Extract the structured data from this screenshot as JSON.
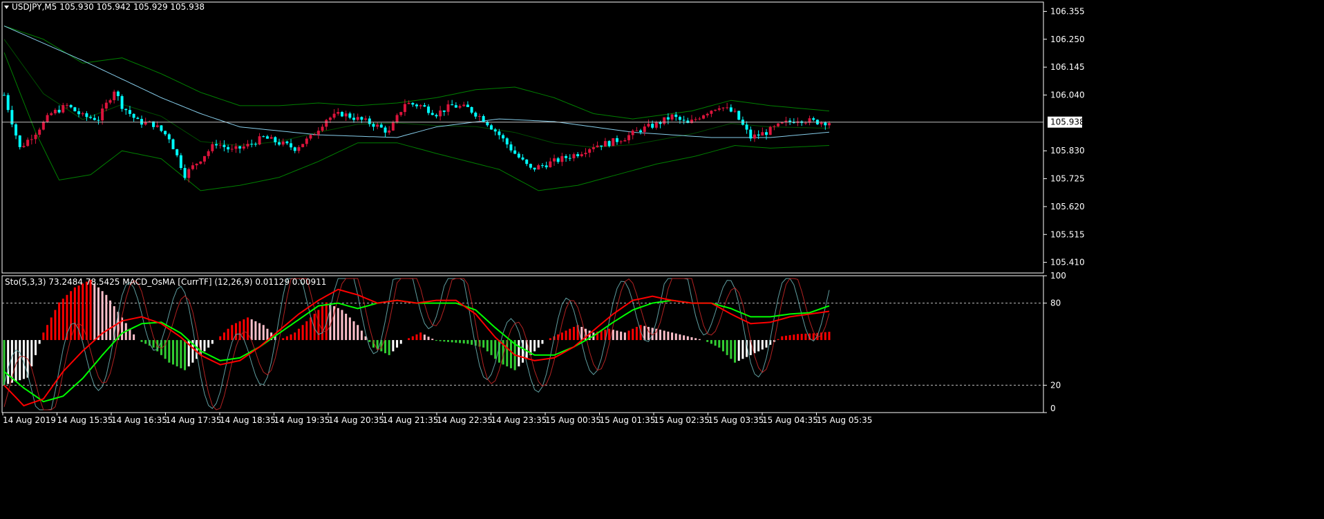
{
  "main_window": {
    "header": "USDJPY,M5  105.930 105.942 105.929 105.938"
  },
  "indicator_window": {
    "header": "Sto(5,3,3) 73.2484 78.5425  MACD_OsMA [CurrTF] (12,26,9) 0.01129 0.00911"
  },
  "colors": {
    "background": "#000000",
    "frame": "#ffffff",
    "bull_candle": "#dc143c",
    "bear_candle": "#00ffff",
    "bollinger": "#008000",
    "moving_average": "#87ceeb",
    "bid_line": "#c0c0c0",
    "stoch_main": "#ff0000",
    "stoch_signal": "#00ff00",
    "osma_up": "#ff0000",
    "osma_down": "#32cd32",
    "osma_light": "#ffc0cb",
    "osma_white": "#ffffff"
  },
  "chart_data": [
    {
      "type": "candlestick",
      "symbol": "USDJPY",
      "timeframe": "M5",
      "price_ticks": [
        "106.355",
        "106.250",
        "106.145",
        "106.040",
        "105.938",
        "105.830",
        "105.725",
        "105.620",
        "105.515",
        "105.410"
      ],
      "price_range": [
        105.37,
        106.39
      ],
      "current_price": "105.938",
      "time_labels": [
        "14 Aug 2019",
        "14 Aug 15:35",
        "14 Aug 16:35",
        "14 Aug 17:35",
        "14 Aug 18:35",
        "14 Aug 19:35",
        "14 Aug 20:35",
        "14 Aug 21:35",
        "14 Aug 22:35",
        "14 Aug 23:35",
        "15 Aug 00:35",
        "15 Aug 01:35",
        "15 Aug 02:35",
        "15 Aug 03:35",
        "15 Aug 04:35",
        "15 Aug 05:35"
      ],
      "close_path": [
        [
          0,
          106.04
        ],
        [
          4,
          105.84
        ],
        [
          8,
          105.9
        ],
        [
          12,
          105.97
        ],
        [
          16,
          106.0
        ],
        [
          20,
          105.96
        ],
        [
          24,
          105.95
        ],
        [
          28,
          106.06
        ],
        [
          30,
          106.0
        ],
        [
          34,
          105.94
        ],
        [
          38,
          105.93
        ],
        [
          42,
          105.88
        ],
        [
          46,
          105.74
        ],
        [
          50,
          105.8
        ],
        [
          54,
          105.86
        ],
        [
          58,
          105.83
        ],
        [
          62,
          105.85
        ],
        [
          66,
          105.88
        ],
        [
          70,
          105.86
        ],
        [
          74,
          105.84
        ],
        [
          78,
          105.88
        ],
        [
          82,
          105.95
        ],
        [
          86,
          105.97
        ],
        [
          90,
          105.95
        ],
        [
          94,
          105.93
        ],
        [
          98,
          105.9
        ],
        [
          102,
          106.01
        ],
        [
          106,
          106.0
        ],
        [
          110,
          105.97
        ],
        [
          114,
          106.0
        ],
        [
          118,
          105.99
        ],
        [
          122,
          105.95
        ],
        [
          126,
          105.89
        ],
        [
          130,
          105.82
        ],
        [
          134,
          105.76
        ],
        [
          138,
          105.78
        ],
        [
          142,
          105.8
        ],
        [
          146,
          105.82
        ],
        [
          150,
          105.85
        ],
        [
          154,
          105.86
        ],
        [
          158,
          105.88
        ],
        [
          162,
          105.91
        ],
        [
          166,
          105.93
        ],
        [
          170,
          105.96
        ],
        [
          174,
          105.93
        ],
        [
          178,
          105.97
        ],
        [
          182,
          106.0
        ],
        [
          186,
          105.97
        ],
        [
          190,
          105.88
        ],
        [
          194,
          105.9
        ],
        [
          198,
          105.93
        ],
        [
          202,
          105.95
        ],
        [
          206,
          105.94
        ],
        [
          210,
          105.938
        ]
      ],
      "moving_average_path": [
        [
          0,
          106.3
        ],
        [
          20,
          106.17
        ],
        [
          40,
          106.03
        ],
        [
          50,
          105.97
        ],
        [
          60,
          105.92
        ],
        [
          80,
          105.89
        ],
        [
          100,
          105.88
        ],
        [
          110,
          105.92
        ],
        [
          126,
          105.95
        ],
        [
          140,
          105.94
        ],
        [
          160,
          105.9
        ],
        [
          180,
          105.88
        ],
        [
          195,
          105.88
        ],
        [
          210,
          105.9
        ]
      ],
      "bollinger_upper_path": [
        [
          0,
          106.3
        ],
        [
          10,
          106.25
        ],
        [
          20,
          106.16
        ],
        [
          30,
          106.18
        ],
        [
          40,
          106.12
        ],
        [
          50,
          106.05
        ],
        [
          60,
          106.0
        ],
        [
          70,
          106.0
        ],
        [
          80,
          106.01
        ],
        [
          90,
          106.0
        ],
        [
          100,
          106.01
        ],
        [
          110,
          106.03
        ],
        [
          120,
          106.06
        ],
        [
          130,
          106.07
        ],
        [
          140,
          106.03
        ],
        [
          150,
          105.97
        ],
        [
          160,
          105.95
        ],
        [
          175,
          105.98
        ],
        [
          185,
          106.02
        ],
        [
          195,
          106.0
        ],
        [
          210,
          105.98
        ]
      ],
      "bollinger_lower_path": [
        [
          0,
          106.2
        ],
        [
          8,
          105.9
        ],
        [
          14,
          105.72
        ],
        [
          22,
          105.74
        ],
        [
          30,
          105.83
        ],
        [
          40,
          105.8
        ],
        [
          50,
          105.68
        ],
        [
          60,
          105.7
        ],
        [
          70,
          105.73
        ],
        [
          80,
          105.79
        ],
        [
          90,
          105.86
        ],
        [
          100,
          105.86
        ],
        [
          110,
          105.82
        ],
        [
          126,
          105.76
        ],
        [
          136,
          105.68
        ],
        [
          146,
          105.7
        ],
        [
          156,
          105.74
        ],
        [
          166,
          105.78
        ],
        [
          176,
          105.81
        ],
        [
          186,
          105.85
        ],
        [
          195,
          105.84
        ],
        [
          210,
          105.85
        ]
      ]
    },
    {
      "type": "oscillator",
      "name": "Sto(5,3,3) / MACD_OsMA",
      "scale_ticks": [
        "100",
        "80",
        "20",
        "0"
      ],
      "levels": [
        80,
        20
      ],
      "range": [
        0,
        100
      ],
      "stoch_main_path": [
        [
          0,
          20
        ],
        [
          5,
          5
        ],
        [
          10,
          10
        ],
        [
          15,
          30
        ],
        [
          20,
          45
        ],
        [
          25,
          58
        ],
        [
          30,
          67
        ],
        [
          35,
          70
        ],
        [
          40,
          65
        ],
        [
          45,
          55
        ],
        [
          50,
          42
        ],
        [
          55,
          35
        ],
        [
          60,
          38
        ],
        [
          65,
          48
        ],
        [
          70,
          60
        ],
        [
          75,
          72
        ],
        [
          80,
          82
        ],
        [
          85,
          90
        ],
        [
          90,
          86
        ],
        [
          95,
          80
        ],
        [
          100,
          82
        ],
        [
          105,
          80
        ],
        [
          110,
          82
        ],
        [
          115,
          82
        ],
        [
          120,
          72
        ],
        [
          125,
          55
        ],
        [
          130,
          42
        ],
        [
          135,
          38
        ],
        [
          140,
          40
        ],
        [
          145,
          48
        ],
        [
          150,
          60
        ],
        [
          155,
          72
        ],
        [
          160,
          82
        ],
        [
          165,
          85
        ],
        [
          170,
          82
        ],
        [
          175,
          80
        ],
        [
          180,
          80
        ],
        [
          185,
          72
        ],
        [
          190,
          65
        ],
        [
          195,
          66
        ],
        [
          200,
          70
        ],
        [
          205,
          72
        ],
        [
          210,
          74
        ]
      ],
      "stoch_signal_path": [
        [
          0,
          30
        ],
        [
          5,
          18
        ],
        [
          10,
          8
        ],
        [
          15,
          12
        ],
        [
          20,
          25
        ],
        [
          25,
          42
        ],
        [
          30,
          58
        ],
        [
          35,
          65
        ],
        [
          40,
          66
        ],
        [
          45,
          58
        ],
        [
          50,
          45
        ],
        [
          55,
          38
        ],
        [
          60,
          40
        ],
        [
          65,
          48
        ],
        [
          70,
          58
        ],
        [
          75,
          68
        ],
        [
          80,
          78
        ],
        [
          85,
          80
        ],
        [
          90,
          76
        ],
        [
          95,
          80
        ],
        [
          100,
          82
        ],
        [
          105,
          80
        ],
        [
          110,
          80
        ],
        [
          115,
          80
        ],
        [
          120,
          75
        ],
        [
          125,
          62
        ],
        [
          130,
          50
        ],
        [
          135,
          42
        ],
        [
          140,
          42
        ],
        [
          145,
          48
        ],
        [
          150,
          56
        ],
        [
          155,
          66
        ],
        [
          160,
          75
        ],
        [
          165,
          80
        ],
        [
          170,
          82
        ],
        [
          175,
          80
        ],
        [
          180,
          80
        ],
        [
          185,
          76
        ],
        [
          190,
          70
        ],
        [
          195,
          70
        ],
        [
          200,
          72
        ],
        [
          205,
          73
        ],
        [
          210,
          78
        ]
      ],
      "osma_path": [
        [
          0,
          -0.06
        ],
        [
          6,
          -0.05
        ],
        [
          10,
          0.01
        ],
        [
          14,
          0.05
        ],
        [
          18,
          0.07
        ],
        [
          22,
          0.08
        ],
        [
          26,
          0.06
        ],
        [
          30,
          0.03
        ],
        [
          34,
          0.0
        ],
        [
          38,
          -0.01
        ],
        [
          42,
          -0.03
        ],
        [
          46,
          -0.04
        ],
        [
          50,
          -0.02
        ],
        [
          54,
          0.0
        ],
        [
          58,
          0.02
        ],
        [
          62,
          0.03
        ],
        [
          66,
          0.02
        ],
        [
          70,
          0.0
        ],
        [
          74,
          0.01
        ],
        [
          78,
          0.03
        ],
        [
          82,
          0.05
        ],
        [
          86,
          0.04
        ],
        [
          90,
          0.02
        ],
        [
          94,
          -0.01
        ],
        [
          98,
          -0.02
        ],
        [
          102,
          0.0
        ],
        [
          106,
          0.01
        ],
        [
          110,
          -0.001
        ],
        [
          114,
          -0.003
        ],
        [
          118,
          -0.005
        ],
        [
          122,
          -0.01
        ],
        [
          126,
          -0.03
        ],
        [
          130,
          -0.04
        ],
        [
          134,
          -0.02
        ],
        [
          138,
          0.0
        ],
        [
          142,
          0.01
        ],
        [
          146,
          0.02
        ],
        [
          150,
          0.01
        ],
        [
          154,
          0.015
        ],
        [
          158,
          0.01
        ],
        [
          162,
          0.02
        ],
        [
          166,
          0.015
        ],
        [
          170,
          0.01
        ],
        [
          174,
          0.005
        ],
        [
          178,
          0.0
        ],
        [
          182,
          -0.01
        ],
        [
          186,
          -0.03
        ],
        [
          190,
          -0.02
        ],
        [
          194,
          -0.01
        ],
        [
          198,
          0.005
        ],
        [
          202,
          0.008
        ],
        [
          206,
          0.009
        ],
        [
          210,
          0.011
        ]
      ]
    }
  ]
}
